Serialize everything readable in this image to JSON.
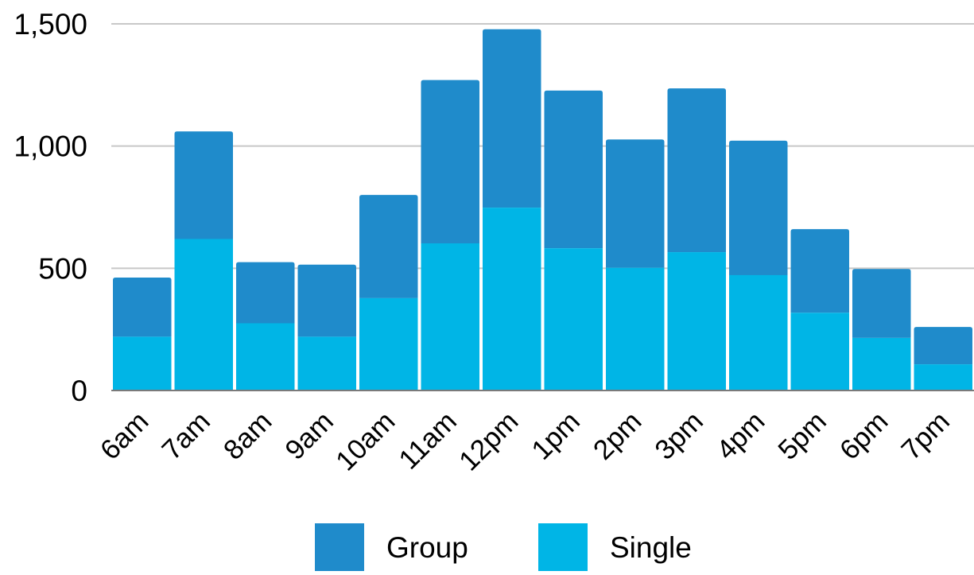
{
  "chart_data": {
    "type": "bar",
    "stacked": true,
    "categories": [
      "6am",
      "7am",
      "8am",
      "9am",
      "10am",
      "11am",
      "12pm",
      "1pm",
      "2pm",
      "3pm",
      "4pm",
      "5pm",
      "6pm",
      "7pm"
    ],
    "series": [
      {
        "name": "Single",
        "color": "#00b5e6",
        "values": [
          220,
          620,
          275,
          220,
          378,
          602,
          748,
          582,
          502,
          566,
          472,
          318,
          215,
          107
        ]
      },
      {
        "name": "Group",
        "color": "#1f8bcb",
        "values": [
          242,
          440,
          250,
          295,
          422,
          668,
          730,
          645,
          525,
          670,
          550,
          342,
          282,
          153
        ]
      }
    ],
    "y_ticks": [
      "0",
      "500",
      "1,000",
      "1,500"
    ],
    "ylim": [
      0,
      1500
    ],
    "grid": true,
    "legend_position": "bottom",
    "legend_order": [
      "Group",
      "Single"
    ]
  }
}
